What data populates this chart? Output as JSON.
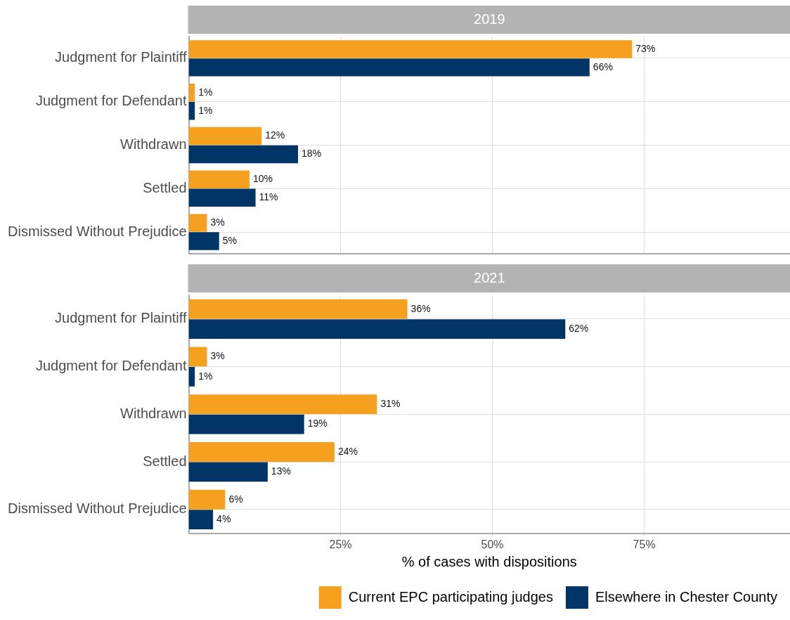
{
  "chart_data": [
    {
      "type": "bar",
      "orientation": "horizontal",
      "title": "2019",
      "categories": [
        "Judgment for Plaintiff",
        "Judgment for Defendant",
        "Withdrawn",
        "Settled",
        "Dismissed Without Prejudice"
      ],
      "series": [
        {
          "color": "#f5a01e",
          "values": [
            73,
            1,
            12,
            10,
            3
          ],
          "value_labels": [
            "73%",
            "1%",
            "12%",
            "10%",
            "3%"
          ]
        },
        {
          "color": "#023567",
          "values": [
            66,
            1,
            18,
            11,
            5
          ],
          "value_labels": [
            "66%",
            "1%",
            "18%",
            "11%",
            "5%"
          ]
        }
      ],
      "xlim": [
        0,
        99
      ],
      "xticks": [
        25,
        50,
        75
      ],
      "grid": true,
      "tick_labels": "y"
    },
    {
      "type": "bar",
      "orientation": "horizontal",
      "title": "2021",
      "categories": [
        "Judgment for Plaintiff",
        "Judgment for Defendant",
        "Withdrawn",
        "Settled",
        "Dismissed Without Prejudice"
      ],
      "series": [
        {
          "name": "Current EPC participating judges",
          "color": "#f5a01e",
          "values": [
            36,
            3,
            31,
            24,
            6
          ],
          "value_labels": [
            "36%",
            "3%",
            "31%",
            "24%",
            "6%"
          ]
        },
        {
          "name": "Elsewhere in Chester County",
          "color": "#023567",
          "values": [
            62,
            1,
            19,
            13,
            4
          ],
          "value_labels": [
            "62%",
            "1%",
            "19%",
            "13%",
            "4%"
          ]
        }
      ],
      "xlim": [
        0,
        99
      ],
      "xticks": [
        {
          "value": 25,
          "label": "25%"
        },
        {
          "value": 50,
          "label": "50%"
        },
        {
          "value": 75,
          "label": "75%"
        }
      ],
      "grid": true,
      "xlabel": "% of cases with dispositions",
      "legend": "bottom right"
    }
  ]
}
